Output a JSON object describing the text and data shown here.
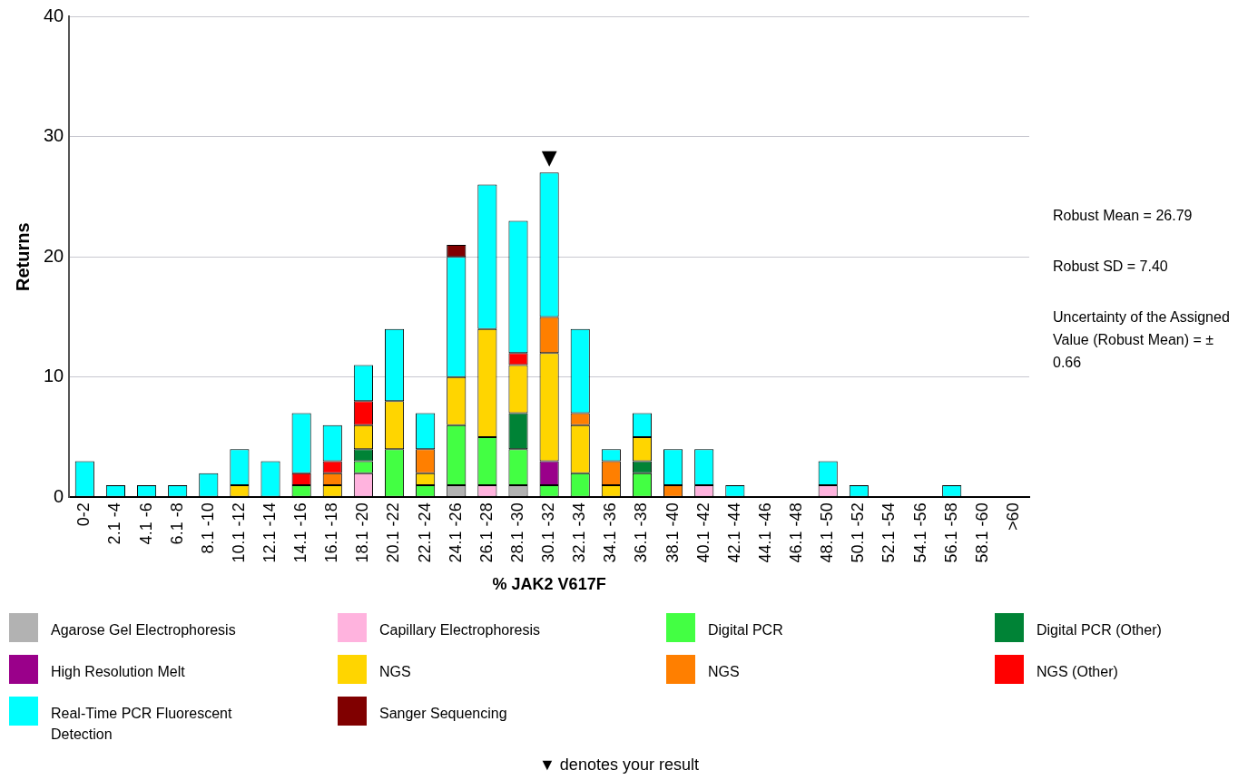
{
  "chart_data": {
    "type": "bar",
    "stacked": true,
    "xlabel": "% JAK2 V617F",
    "ylabel": "Returns",
    "categories": [
      "0-2",
      "2.1 -4",
      "4.1 -6",
      "6.1 -8",
      "8.1 -10",
      "10.1 -12",
      "12.1 -14",
      "14.1 -16",
      "16.1 -18",
      "18.1 -20",
      "20.1 -22",
      "22.1 -24",
      "24.1 -26",
      "26.1 -28",
      "28.1 -30",
      "30.1 -32",
      "32.1 -34",
      "34.1 -36",
      "36.1 -38",
      "38.1 -40",
      "40.1 -42",
      "42.1 -44",
      "44.1 -46",
      "46.1 -48",
      "48.1 -50",
      "50.1 -52",
      "52.1 -54",
      "54.1 -56",
      "56.1 -58",
      "58.1 -60",
      ">60"
    ],
    "series": [
      {
        "name": "Agarose Gel Electrophoresis",
        "color": "#b2b2b2",
        "values": [
          0,
          0,
          0,
          0,
          0,
          0,
          0,
          0,
          0,
          0,
          0,
          0,
          1,
          0,
          1,
          0,
          0,
          0,
          0,
          0,
          0,
          0,
          0,
          0,
          0,
          0,
          0,
          0,
          0,
          0,
          0
        ]
      },
      {
        "name": "Capillary Electrophoresis",
        "color": "#ffb3de",
        "values": [
          0,
          0,
          0,
          0,
          0,
          0,
          0,
          0,
          0,
          2,
          0,
          0,
          0,
          1,
          0,
          0,
          0,
          0,
          0,
          0,
          1,
          0,
          0,
          0,
          1,
          0,
          0,
          0,
          0,
          0,
          0
        ]
      },
      {
        "name": "Digital PCR",
        "color": "#43ff43",
        "values": [
          0,
          0,
          0,
          0,
          0,
          0,
          0,
          1,
          0,
          1,
          4,
          1,
          5,
          4,
          3,
          1,
          2,
          0,
          2,
          0,
          0,
          0,
          0,
          0,
          0,
          0,
          0,
          0,
          0,
          0,
          0
        ]
      },
      {
        "name": "Digital PCR (Other)",
        "color": "#008336",
        "values": [
          0,
          0,
          0,
          0,
          0,
          0,
          0,
          0,
          0,
          1,
          0,
          0,
          0,
          0,
          3,
          0,
          0,
          0,
          1,
          0,
          0,
          0,
          0,
          0,
          0,
          0,
          0,
          0,
          0,
          0,
          0
        ]
      },
      {
        "name": "High Resolution Melt",
        "color": "#9a008a",
        "values": [
          0,
          0,
          0,
          0,
          0,
          0,
          0,
          0,
          0,
          0,
          0,
          0,
          0,
          0,
          0,
          2,
          0,
          0,
          0,
          0,
          0,
          0,
          0,
          0,
          0,
          0,
          0,
          0,
          0,
          0,
          0
        ]
      },
      {
        "name": "NGS",
        "color": "#ffd500",
        "values": [
          0,
          0,
          0,
          0,
          0,
          1,
          0,
          0,
          1,
          2,
          4,
          1,
          4,
          9,
          4,
          9,
          4,
          1,
          2,
          0,
          0,
          0,
          0,
          0,
          0,
          0,
          0,
          0,
          0,
          0,
          0
        ]
      },
      {
        "name": "NGS",
        "color": "#ff7f00",
        "values": [
          0,
          0,
          0,
          0,
          0,
          0,
          0,
          0,
          1,
          0,
          0,
          2,
          0,
          0,
          0,
          3,
          1,
          2,
          0,
          1,
          0,
          0,
          0,
          0,
          0,
          0,
          0,
          0,
          0,
          0,
          0
        ]
      },
      {
        "name": "NGS (Other)",
        "color": "#ff0000",
        "values": [
          0,
          0,
          0,
          0,
          0,
          0,
          0,
          1,
          1,
          2,
          0,
          0,
          0,
          0,
          1,
          0,
          0,
          0,
          0,
          0,
          0,
          0,
          0,
          0,
          0,
          0,
          0,
          0,
          0,
          0,
          0
        ]
      },
      {
        "name": "Real-Time PCR Fluorescent Detection",
        "color": "#00ffff",
        "values": [
          3,
          1,
          1,
          1,
          2,
          3,
          3,
          5,
          3,
          3,
          6,
          3,
          10,
          12,
          11,
          12,
          7,
          1,
          2,
          3,
          3,
          1,
          0,
          0,
          2,
          1,
          0,
          0,
          1,
          0,
          0
        ]
      },
      {
        "name": "Sanger Sequencing",
        "color": "#800000",
        "values": [
          0,
          0,
          0,
          0,
          0,
          0,
          0,
          0,
          0,
          0,
          0,
          0,
          1,
          0,
          0,
          0,
          0,
          0,
          0,
          0,
          0,
          0,
          0,
          0,
          0,
          0,
          0,
          0,
          0,
          0,
          0
        ]
      }
    ],
    "ylim": [
      0,
      40
    ],
    "yticks": [
      0,
      10,
      20,
      30,
      40
    ],
    "grid": "y",
    "legend": "bottom",
    "annotations": [
      {
        "text": "▼",
        "x": "30.1 -32",
        "y": 27
      },
      "Robust Mean = 26.79",
      "Robust SD = 7.40",
      "Uncertainty of the Assigned Value (Robust Mean) = ± 0.66",
      "▼ denotes your result"
    ]
  }
}
